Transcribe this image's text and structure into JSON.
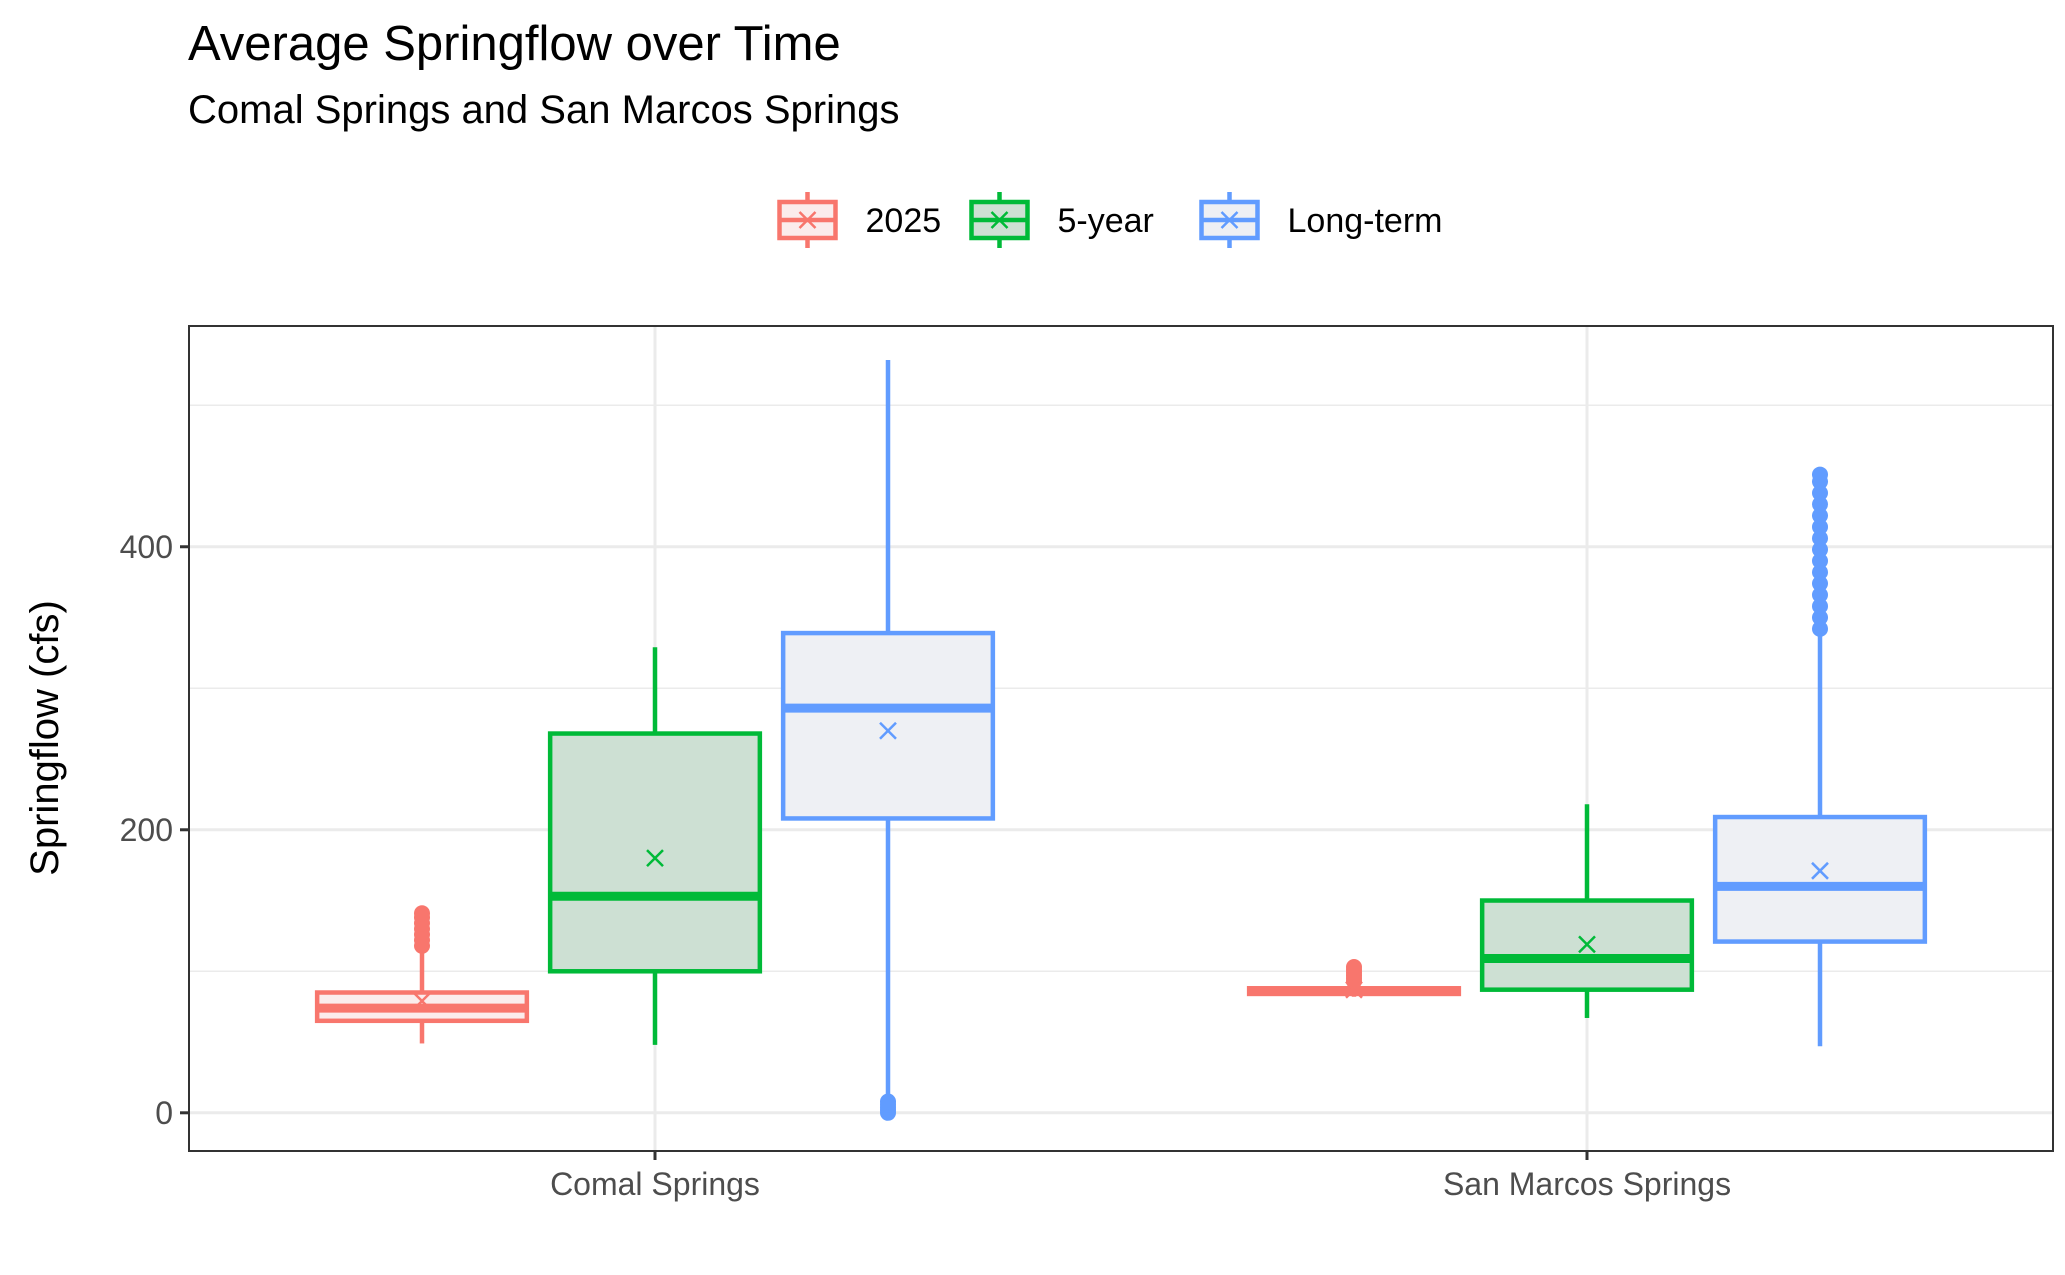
{
  "chart_data": {
    "type": "boxplot",
    "title": "Average Springflow over Time",
    "subtitle": "Comal Springs and San Marcos Springs",
    "xlabel": "",
    "ylabel": "Springflow (cfs)",
    "ylim": [
      -27,
      556
    ],
    "y_ticks": [
      0,
      200,
      400
    ],
    "grid": true,
    "legend_position": "top",
    "categories": [
      "Comal Springs",
      "San Marcos Springs"
    ],
    "series": [
      {
        "name": "2025",
        "color": "#F8766D",
        "fill": "#fbecec",
        "boxes": [
          {
            "category": "Comal Springs",
            "whisker_low": 49,
            "q1": 65,
            "median": 74,
            "q3": 85,
            "whisker_high": 114,
            "mean": 79,
            "outliers": [
              118,
              122,
              126,
              130,
              134,
              138,
              141
            ]
          },
          {
            "category": "San Marcos Springs",
            "whisker_low": 82,
            "q1": 84,
            "median": 86,
            "q3": 88,
            "whisker_high": 91,
            "mean": 87,
            "outliers": [
              93,
              95,
              97,
              99,
              101,
              103
            ]
          }
        ]
      },
      {
        "name": "5-year",
        "color": "#00BA38",
        "fill": "#cde0d3",
        "boxes": [
          {
            "category": "Comal Springs",
            "whisker_low": 48,
            "q1": 100,
            "median": 153,
            "q3": 268,
            "whisker_high": 329,
            "mean": 180,
            "outliers": []
          },
          {
            "category": "San Marcos Springs",
            "whisker_low": 67,
            "q1": 87,
            "median": 109,
            "q3": 150,
            "whisker_high": 218,
            "mean": 119,
            "outliers": []
          }
        ]
      },
      {
        "name": "Long-term",
        "color": "#619CFF",
        "fill": "#eef0f4",
        "boxes": [
          {
            "category": "Comal Springs",
            "whisker_low": 12,
            "q1": 208,
            "median": 286,
            "q3": 339,
            "whisker_high": 532,
            "mean": 270,
            "outliers": [
              0,
              2,
              4,
              6,
              8
            ]
          },
          {
            "category": "San Marcos Springs",
            "whisker_low": 47,
            "q1": 121,
            "median": 160,
            "q3": 209,
            "whisker_high": 340,
            "mean": 171,
            "outliers": [
              342,
              350,
              358,
              366,
              374,
              382,
              390,
              398,
              406,
              414,
              422,
              430,
              438,
              446,
              451
            ]
          }
        ]
      }
    ]
  }
}
